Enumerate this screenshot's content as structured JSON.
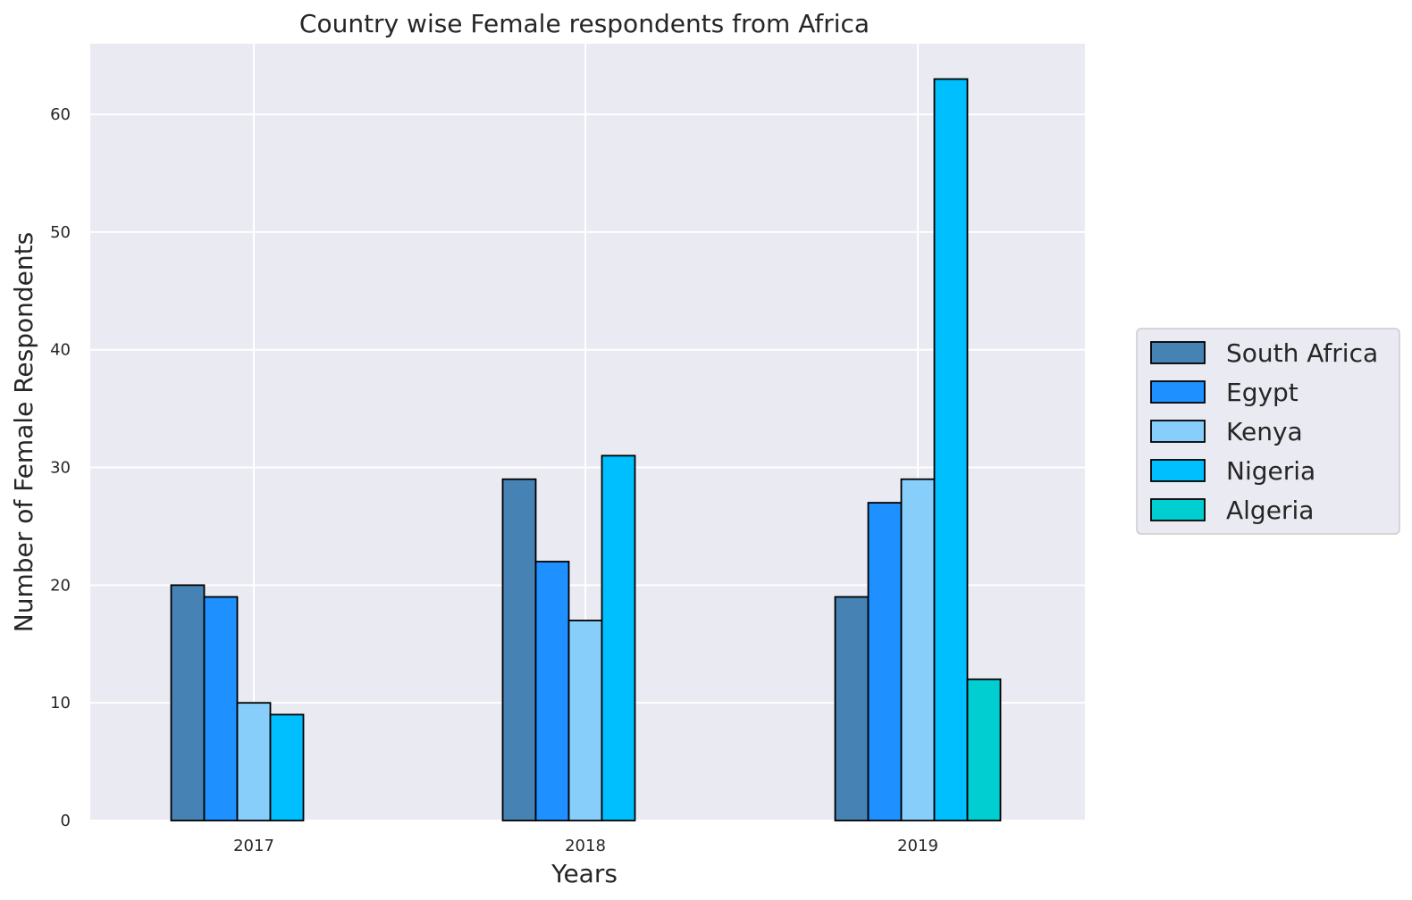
{
  "chart_data": {
    "type": "bar",
    "title": "Country wise Female respondents from Africa",
    "xlabel": "Years",
    "ylabel": "Number of Female Respondents",
    "categories": [
      "2017",
      "2018",
      "2019"
    ],
    "series": [
      {
        "name": "South Africa",
        "color": "#4682b4",
        "values": [
          20,
          29,
          19
        ]
      },
      {
        "name": "Egypt",
        "color": "#1e90ff",
        "values": [
          19,
          22,
          27
        ]
      },
      {
        "name": "Kenya",
        "color": "#87cefa",
        "values": [
          10,
          17,
          29
        ]
      },
      {
        "name": "Nigeria",
        "color": "#00bfff",
        "values": [
          9,
          31,
          63
        ]
      },
      {
        "name": "Algeria",
        "color": "#00ced1",
        "values": [
          0,
          0,
          12
        ]
      }
    ],
    "ylim": [
      0,
      66
    ],
    "yticks": [
      0,
      10,
      20,
      30,
      40,
      50,
      60
    ],
    "grid": true,
    "legend_position": "right"
  }
}
